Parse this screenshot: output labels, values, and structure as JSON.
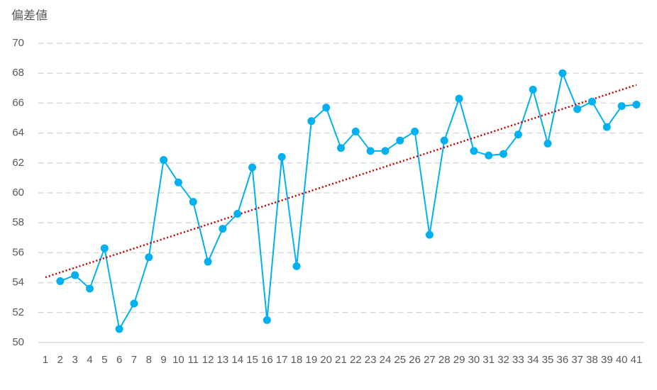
{
  "chart_data": {
    "type": "line",
    "y_axis_label": "偏差値",
    "categories": [
      1,
      2,
      3,
      4,
      5,
      6,
      7,
      8,
      9,
      10,
      11,
      12,
      13,
      14,
      15,
      16,
      17,
      18,
      19,
      20,
      21,
      22,
      23,
      24,
      25,
      26,
      27,
      28,
      29,
      30,
      31,
      32,
      33,
      34,
      35,
      36,
      37,
      38,
      39,
      40,
      41
    ],
    "values": [
      null,
      54.1,
      54.5,
      53.6,
      56.3,
      50.9,
      52.6,
      55.7,
      62.2,
      60.7,
      59.4,
      55.4,
      57.6,
      58.6,
      61.7,
      51.5,
      62.4,
      55.1,
      64.8,
      65.7,
      63.0,
      64.1,
      62.8,
      62.8,
      63.5,
      64.1,
      57.2,
      63.5,
      66.3,
      62.8,
      62.5,
      62.6,
      63.9,
      66.9,
      63.3,
      68.0,
      65.6,
      66.1,
      64.4,
      65.8,
      65.9
    ],
    "color": "#00b0f0",
    "trendline": "linear",
    "trendline_color": "#c00000",
    "ylim": [
      50,
      70
    ],
    "yticks": [
      50,
      52,
      54,
      56,
      58,
      60,
      62,
      64,
      66,
      68,
      70
    ],
    "grid": true
  }
}
